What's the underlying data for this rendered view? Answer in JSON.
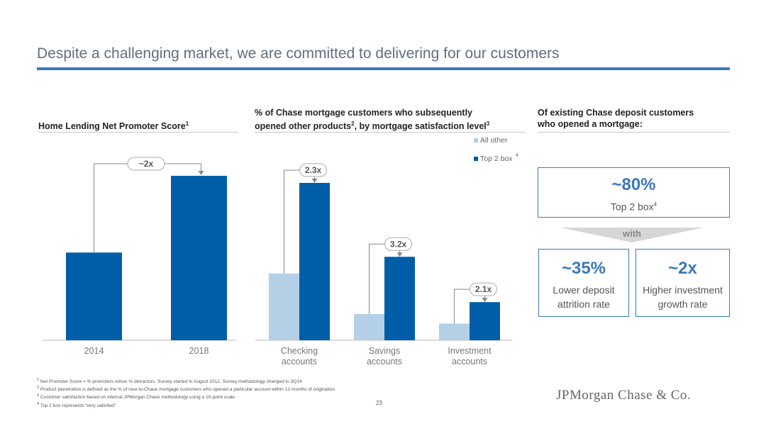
{
  "slide": {
    "title": "Despite a challenging market, we are committed to delivering for our customers",
    "page_number": "23",
    "logo_text": "JPMorgan Chase & Co.",
    "colors": {
      "dark_blue": "#005ea8",
      "light_blue": "#b4d0e6",
      "accent": "#3a78bd"
    }
  },
  "panels": {
    "nps_title": "Home Lending Net Promoter Score",
    "nps_title_sup": "1",
    "products_title_l1": "% of Chase mortgage customers who subsequently",
    "products_title_l2": "opened other products",
    "products_title_sup2": "2",
    "products_title_l2b": ", by mortgage satisfaction level",
    "products_title_sup3": "3",
    "deposit_title_l1": "Of existing Chase deposit customers",
    "deposit_title_l2": "who opened a mortgage:"
  },
  "chart_data": [
    {
      "type": "bar",
      "title": "Home Lending Net Promoter Score",
      "categories": [
        "2014",
        "2018"
      ],
      "values": [
        40,
        75
      ],
      "ylim": [
        0,
        80
      ],
      "annotation": "~2x",
      "grid": false
    },
    {
      "type": "bar",
      "title": "% of Chase mortgage customers who subsequently opened other products, by mortgage satisfaction level",
      "categories": [
        [
          "Checking",
          "accounts"
        ],
        [
          "Savings",
          "accounts"
        ],
        [
          "Investment",
          "accounts"
        ]
      ],
      "series": [
        {
          "name": "All other",
          "values": [
            28,
            11,
            7
          ],
          "color": "#b4d0e6"
        },
        {
          "name": "Top 2 box",
          "name_sup": "4",
          "values": [
            66,
            35,
            16
          ],
          "color": "#005ea8"
        }
      ],
      "ratios": [
        "2.3x",
        "3.2x",
        "2.1x"
      ],
      "ylim": [
        0,
        70
      ],
      "legend": "top-right",
      "grid": false
    }
  ],
  "deposit": {
    "top_value": "~80%",
    "top_label": "Top 2 box",
    "top_label_sup": "4",
    "connector": "with",
    "left_value": "~35%",
    "left_label_l1": "Lower deposit",
    "left_label_l2": "attrition rate",
    "right_value": "~2x",
    "right_label_l1": "Higher investment",
    "right_label_l2": "growth rate"
  },
  "footnotes": [
    {
      "sup": "1",
      "text": "Net Promoter Score = % promoters minus % detractors. Survey started in August 2012. Survey methodology changed in 3Q14"
    },
    {
      "sup": "2",
      "text": "Product penetration is defined as the % of new-to-Chase mortgage customers who opened a particular account within 12 months of origination"
    },
    {
      "sup": "3",
      "text": "Customer satisfaction based on internal JPMorgan Chase methodology using a 10-point scale"
    },
    {
      "sup": "4",
      "text": "Top 2 box represents “very satisfied”"
    }
  ]
}
